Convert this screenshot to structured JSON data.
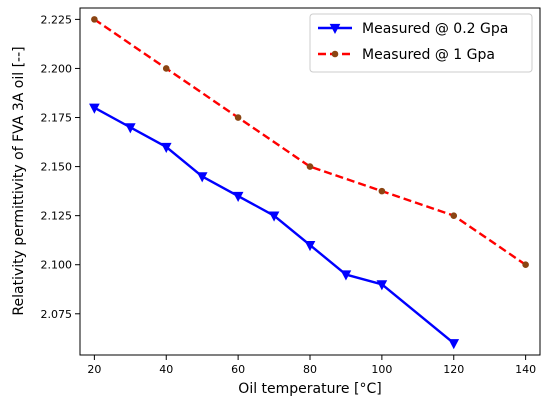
{
  "chart_data": {
    "type": "line",
    "xlabel": "Oil temperature [°C]",
    "ylabel": "Relativity permittivity of FVA 3A oil [--]",
    "xlim": [
      16,
      144
    ],
    "ylim": [
      2.054,
      2.2308
    ],
    "xticks": [
      20,
      40,
      60,
      80,
      100,
      120,
      140
    ],
    "yticks": [
      2.075,
      2.1,
      2.125,
      2.15,
      2.175,
      2.2,
      2.225
    ],
    "ytick_labels": [
      "2.075",
      "2.100",
      "2.125",
      "2.150",
      "2.175",
      "2.200",
      "2.225"
    ],
    "grid": false,
    "legend_position": "top-right",
    "series": [
      {
        "name": "Measured @ 0.2 Gpa",
        "color": "#0000ff",
        "line_style": "solid",
        "marker": "triangle-down",
        "x": [
          20,
          30,
          40,
          50,
          60,
          70,
          80,
          90,
          100,
          120
        ],
        "y": [
          2.18,
          2.17,
          2.16,
          2.145,
          2.135,
          2.125,
          2.11,
          2.095,
          2.09,
          2.06
        ]
      },
      {
        "name": "Measured @ 1 Gpa",
        "color": "#ff0000",
        "line_style": "dashed",
        "marker": "circle",
        "marker_color": "#8b4513",
        "x": [
          20,
          40,
          60,
          80,
          100,
          120,
          140
        ],
        "y": [
          2.225,
          2.2,
          2.175,
          2.15,
          2.1375,
          2.125,
          2.1
        ]
      }
    ]
  }
}
